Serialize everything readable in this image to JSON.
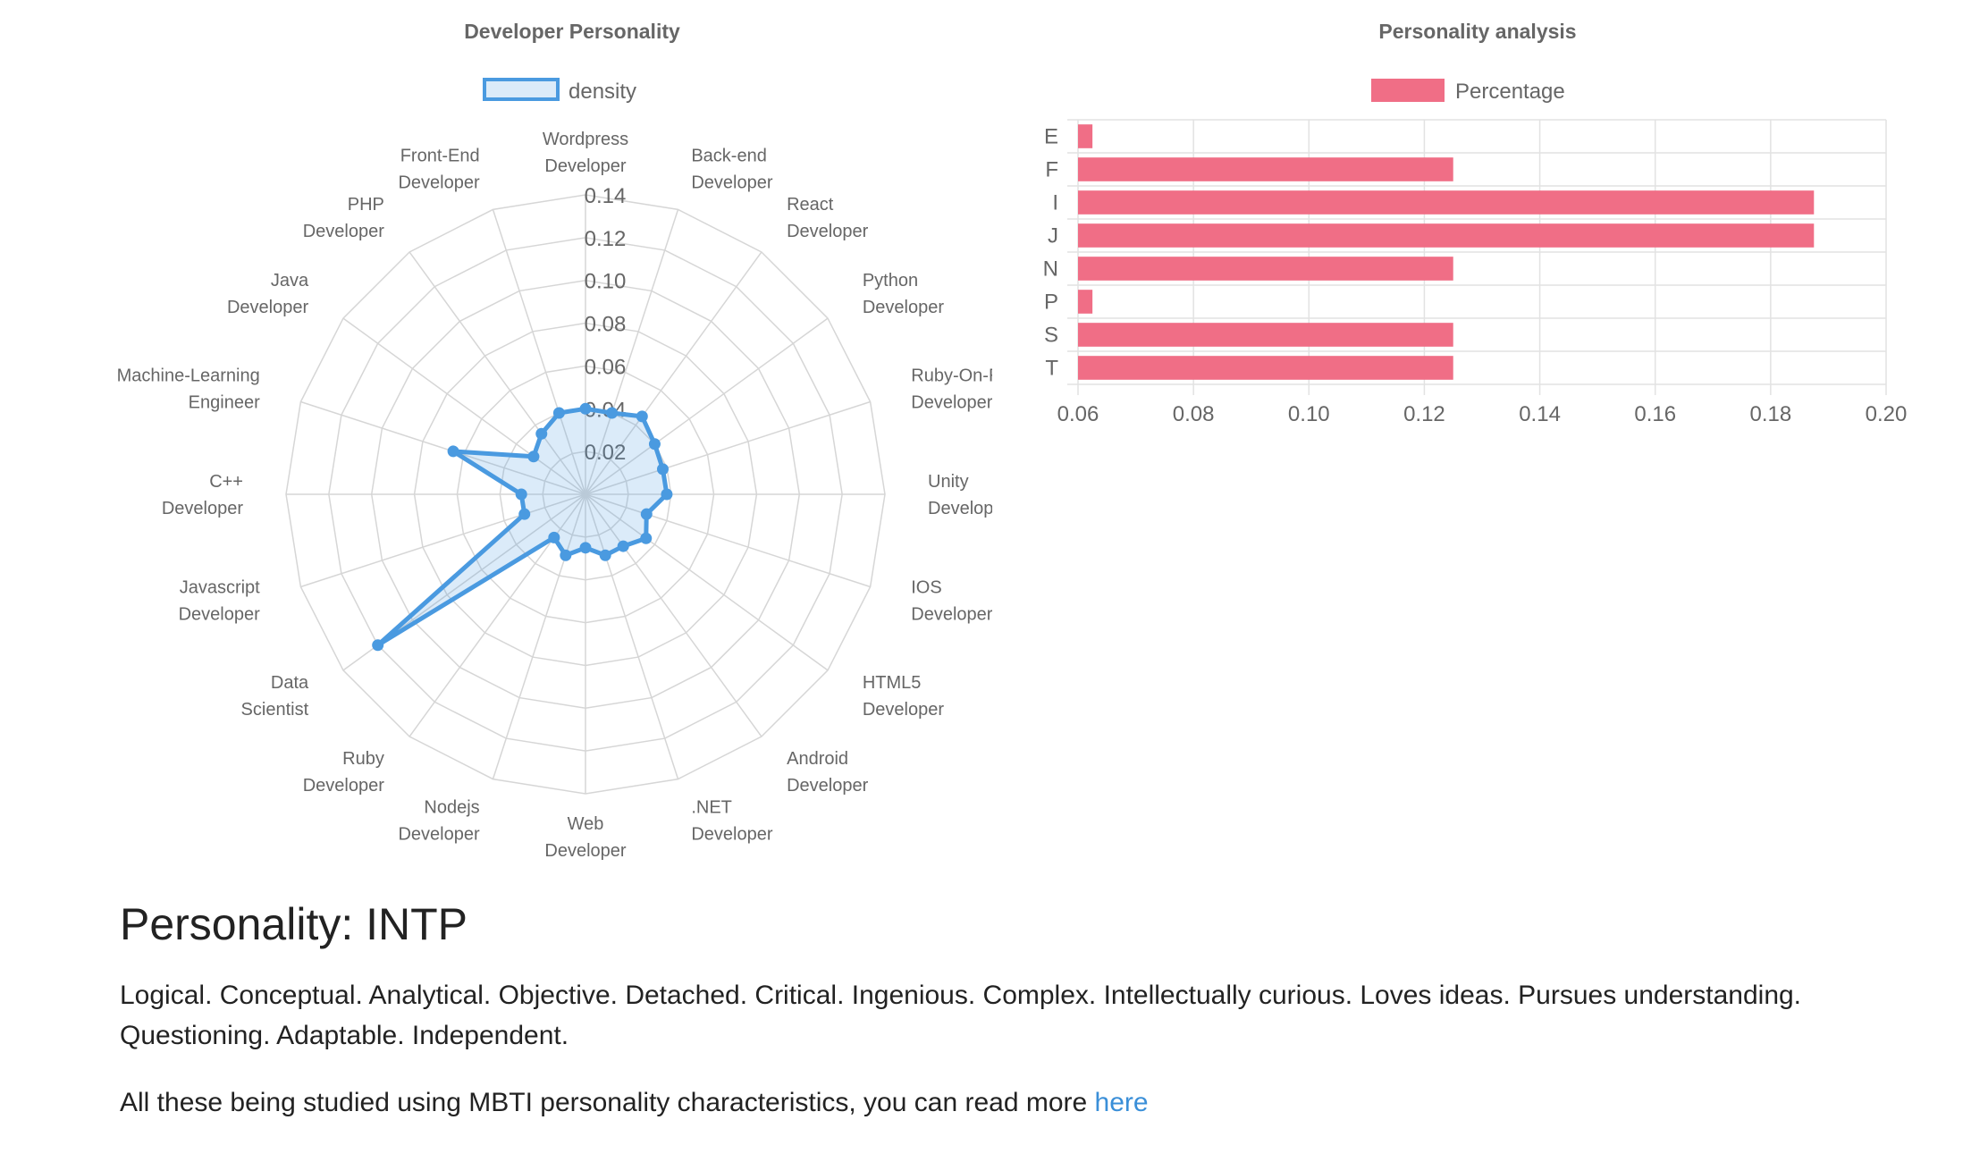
{
  "chart_data": [
    {
      "type": "radar",
      "title": "Developer Personality",
      "legend_position": "top",
      "labels": [
        [
          "Wordpress",
          "Developer"
        ],
        [
          "Back-end",
          "Developer"
        ],
        [
          "React",
          "Developer"
        ],
        [
          "Python",
          "Developer"
        ],
        [
          "Ruby-On-Rails",
          "Developer"
        ],
        [
          "Unity",
          "Developer"
        ],
        [
          "IOS",
          "Developer"
        ],
        [
          "HTML5",
          "Developer"
        ],
        [
          "Android",
          "Developer"
        ],
        [
          ".NET",
          "Developer"
        ],
        [
          "Web",
          "Developer"
        ],
        [
          "Nodejs",
          "Developer"
        ],
        [
          "Ruby",
          "Developer"
        ],
        [
          "Data",
          "Scientist"
        ],
        [
          "Javascript",
          "Developer"
        ],
        [
          "C++",
          "Developer"
        ],
        [
          "Machine-Learning",
          "Engineer"
        ],
        [
          "Java",
          "Developer"
        ],
        [
          "PHP",
          "Developer"
        ],
        [
          "Front-End",
          "Developer"
        ]
      ],
      "series": [
        {
          "name": "density",
          "values": [
            0.04,
            0.04,
            0.045,
            0.04,
            0.038,
            0.038,
            0.03,
            0.035,
            0.03,
            0.03,
            0.025,
            0.03,
            0.025,
            0.12,
            0.03,
            0.03,
            0.065,
            0.03,
            0.035,
            0.04
          ]
        }
      ],
      "rlim": [
        0,
        0.14
      ],
      "ticks": [
        "0.02",
        "0.04",
        "0.06",
        "0.08",
        "0.10",
        "0.12",
        "0.14"
      ],
      "grid": true,
      "colors": {
        "line": "#4a9ae0",
        "fill": "rgba(74,154,224,0.2)",
        "grid": "#d6d6d6"
      }
    },
    {
      "type": "bar",
      "orientation": "horizontal",
      "title": "Personality analysis",
      "legend_position": "top",
      "categories": [
        "E",
        "F",
        "I",
        "J",
        "N",
        "P",
        "S",
        "T"
      ],
      "series": [
        {
          "name": "Percentage",
          "values": [
            0.0625,
            0.125,
            0.1875,
            0.1875,
            0.125,
            0.0625,
            0.125,
            0.125
          ]
        }
      ],
      "xlim": [
        0.06,
        0.2
      ],
      "xticks": [
        "0.06",
        "0.08",
        "0.10",
        "0.12",
        "0.14",
        "0.16",
        "0.18",
        "0.20"
      ],
      "grid": true,
      "colors": {
        "bar": "#f06e86",
        "grid": "#e2e2e2"
      }
    }
  ],
  "info": {
    "heading": "Personality: INTP",
    "description": "Logical. Conceptual. Analytical. Objective. Detached. Critical. Ingenious. Complex. Intellectually curious. Loves ideas. Pursues understanding. Questioning. Adaptable. Independent.",
    "note_text": "All these being studied using MBTI personality characteristics, you can read more ",
    "link_text": "here",
    "link_color": "#3a8fd8"
  }
}
